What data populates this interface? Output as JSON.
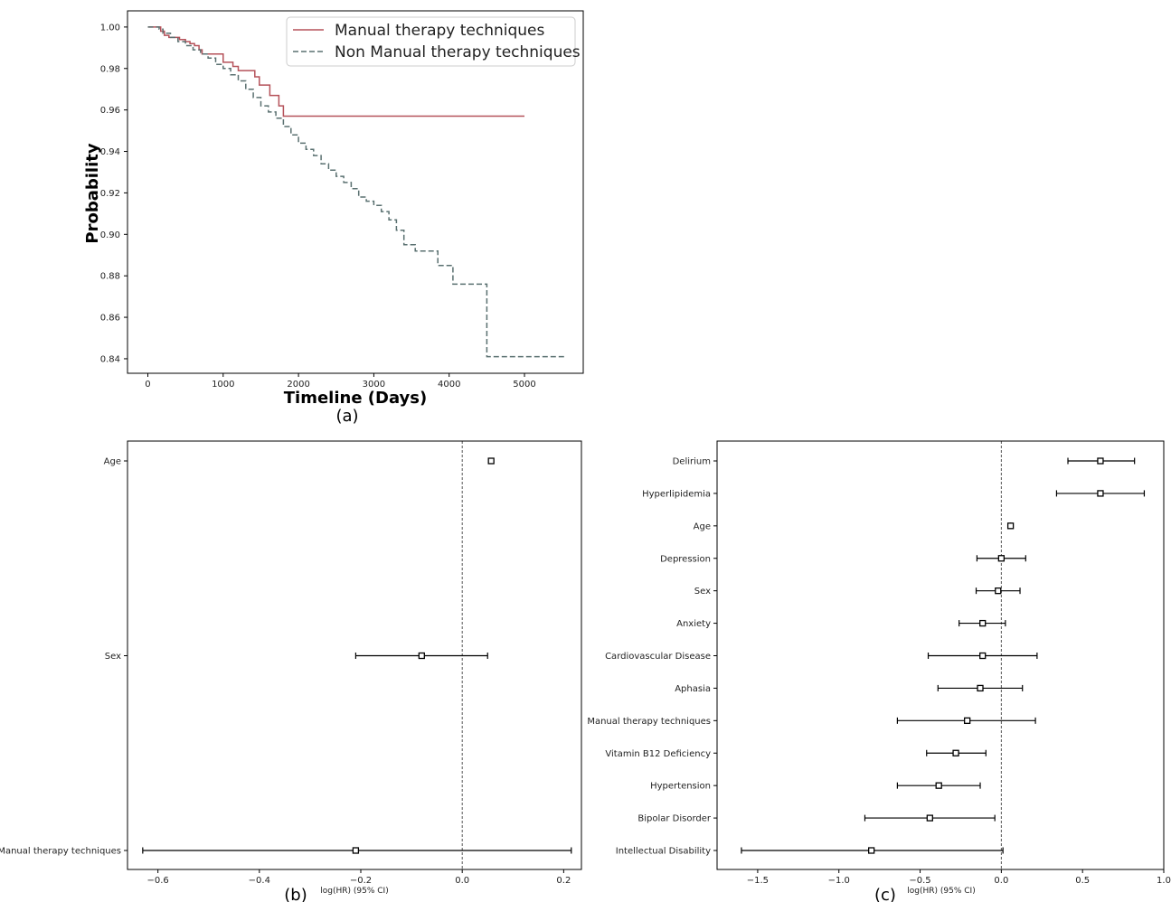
{
  "chart_data": [
    {
      "panel": "(a)",
      "type": "line",
      "xlabel": "Timeline (Days)",
      "ylabel": "Probability",
      "xlim": [
        -270,
        5780
      ],
      "ylim": [
        0.833,
        1.0078
      ],
      "xticks": [
        0,
        1000,
        2000,
        3000,
        4000,
        5000
      ],
      "yticks": [
        0.84,
        0.86,
        0.88,
        0.9,
        0.92,
        0.94,
        0.96,
        0.98,
        1.0
      ],
      "ytick_labels": [
        "0.84",
        "0.86",
        "0.88",
        "0.90",
        "0.92",
        "0.94",
        "0.96",
        "0.98",
        "1.00"
      ],
      "legend_position": "top-right",
      "series": [
        {
          "name": "Manual therapy techniques",
          "color": "#b5525a",
          "style": "solid",
          "steps": [
            [
              0,
              1.0
            ],
            [
              170,
              0.998
            ],
            [
              220,
              0.996
            ],
            [
              280,
              0.995
            ],
            [
              420,
              0.994
            ],
            [
              500,
              0.993
            ],
            [
              560,
              0.992
            ],
            [
              620,
              0.991
            ],
            [
              680,
              0.989
            ],
            [
              720,
              0.987
            ],
            [
              1000,
              0.983
            ],
            [
              1130,
              0.981
            ],
            [
              1200,
              0.979
            ],
            [
              1420,
              0.976
            ],
            [
              1480,
              0.972
            ],
            [
              1620,
              0.967
            ],
            [
              1740,
              0.962
            ],
            [
              1800,
              0.957
            ],
            [
              5000,
              0.957
            ]
          ]
        },
        {
          "name": "Non Manual therapy techniques",
          "color": "#5a7070",
          "style": "dashed",
          "steps": [
            [
              0,
              1.0
            ],
            [
              150,
              0.999
            ],
            [
              200,
              0.997
            ],
            [
              300,
              0.995
            ],
            [
              400,
              0.993
            ],
            [
              500,
              0.991
            ],
            [
              600,
              0.989
            ],
            [
              700,
              0.987
            ],
            [
              800,
              0.985
            ],
            [
              900,
              0.982
            ],
            [
              1000,
              0.98
            ],
            [
              1100,
              0.977
            ],
            [
              1200,
              0.974
            ],
            [
              1300,
              0.97
            ],
            [
              1400,
              0.966
            ],
            [
              1500,
              0.962
            ],
            [
              1600,
              0.959
            ],
            [
              1700,
              0.956
            ],
            [
              1800,
              0.952
            ],
            [
              1900,
              0.948
            ],
            [
              2000,
              0.944
            ],
            [
              2100,
              0.941
            ],
            [
              2200,
              0.938
            ],
            [
              2300,
              0.934
            ],
            [
              2400,
              0.931
            ],
            [
              2500,
              0.928
            ],
            [
              2600,
              0.925
            ],
            [
              2700,
              0.922
            ],
            [
              2800,
              0.918
            ],
            [
              2900,
              0.916
            ],
            [
              3000,
              0.914
            ],
            [
              3100,
              0.911
            ],
            [
              3200,
              0.907
            ],
            [
              3300,
              0.902
            ],
            [
              3400,
              0.895
            ],
            [
              3550,
              0.892
            ],
            [
              3850,
              0.885
            ],
            [
              4050,
              0.876
            ],
            [
              4500,
              0.841
            ],
            [
              5550,
              0.841
            ]
          ]
        }
      ]
    },
    {
      "panel": "(b)",
      "type": "forest",
      "xlabel": "log(HR) (95% CI)",
      "xlim": [
        -0.66,
        0.235
      ],
      "xticks": [
        -0.6,
        -0.4,
        -0.2,
        0.0,
        0.2
      ],
      "xtick_labels": [
        "−0.6",
        "−0.4",
        "−0.2",
        "0.0",
        "0.2"
      ],
      "reference_line": 0,
      "rows": [
        {
          "label": "Age",
          "coef": 0.057,
          "lower": 0.056,
          "upper": 0.058
        },
        {
          "label": "Sex",
          "coef": -0.08,
          "lower": -0.21,
          "upper": 0.05
        },
        {
          "label": "Manual therapy techniques",
          "coef": -0.21,
          "lower": -0.63,
          "upper": 0.215
        }
      ]
    },
    {
      "panel": "(c)",
      "type": "forest",
      "xlabel": "log(HR) (95% CI)",
      "xlim": [
        -1.75,
        1.0
      ],
      "xticks": [
        -1.5,
        -1.0,
        -0.5,
        0.0,
        0.5,
        1.0
      ],
      "xtick_labels": [
        "−1.5",
        "−1.0",
        "−0.5",
        "0.0",
        "0.5",
        "1.0"
      ],
      "reference_line": 0,
      "rows": [
        {
          "label": "Delirium",
          "coef": 0.61,
          "lower": 0.41,
          "upper": 0.82
        },
        {
          "label": "Hyperlipidemia",
          "coef": 0.61,
          "lower": 0.34,
          "upper": 0.88
        },
        {
          "label": "Age",
          "coef": 0.057,
          "lower": 0.056,
          "upper": 0.058
        },
        {
          "label": "Depression",
          "coef": 0.0,
          "lower": -0.15,
          "upper": 0.15
        },
        {
          "label": "Sex",
          "coef": -0.02,
          "lower": -0.155,
          "upper": 0.115
        },
        {
          "label": "Anxiety",
          "coef": -0.115,
          "lower": -0.26,
          "upper": 0.025
        },
        {
          "label": "Cardiovascular Disease",
          "coef": -0.115,
          "lower": -0.45,
          "upper": 0.22
        },
        {
          "label": "Aphasia",
          "coef": -0.13,
          "lower": -0.39,
          "upper": 0.13
        },
        {
          "label": "Manual therapy techniques",
          "coef": -0.21,
          "lower": -0.64,
          "upper": 0.21
        },
        {
          "label": "Vitamin B12 Deficiency",
          "coef": -0.28,
          "lower": -0.46,
          "upper": -0.095
        },
        {
          "label": "Hypertension",
          "coef": -0.385,
          "lower": -0.64,
          "upper": -0.13
        },
        {
          "label": "Bipolar Disorder",
          "coef": -0.44,
          "lower": -0.84,
          "upper": -0.04
        },
        {
          "label": "Intellectual Disability",
          "coef": -0.8,
          "lower": -1.6,
          "upper": 0.01
        }
      ]
    }
  ],
  "captions": {
    "a": "(a)",
    "b": "(b)",
    "c": "(c)"
  }
}
